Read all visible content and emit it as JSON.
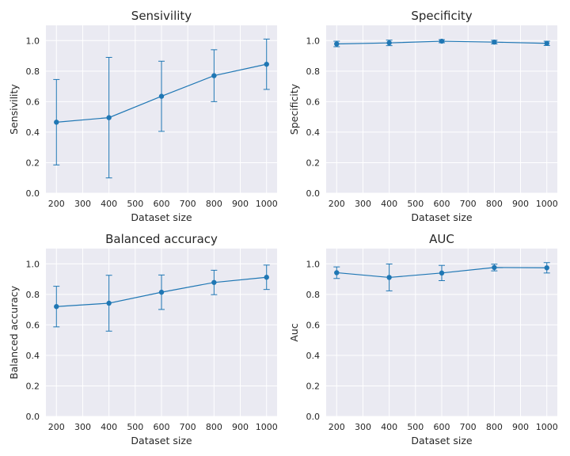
{
  "chart_data": [
    {
      "type": "line",
      "title": "Sensivility",
      "xlabel": "Dataset size",
      "ylabel": "Sensivility",
      "x": [
        200,
        400,
        600,
        800,
        1000
      ],
      "values": [
        0.465,
        0.495,
        0.635,
        0.77,
        0.845
      ],
      "errors": [
        0.28,
        0.395,
        0.23,
        0.17,
        0.165
      ],
      "xticks": [
        200,
        300,
        400,
        500,
        600,
        700,
        800,
        900,
        1000
      ],
      "yticks": [
        0.0,
        0.2,
        0.4,
        0.6,
        0.8,
        1.0
      ],
      "ylim": [
        0,
        1.1
      ],
      "color": "#1f77b4"
    },
    {
      "type": "line",
      "title": "Specificity",
      "xlabel": "Dataset size",
      "ylabel": "Specificity",
      "x": [
        200,
        400,
        600,
        800,
        1000
      ],
      "values": [
        0.978,
        0.985,
        0.996,
        0.99,
        0.982
      ],
      "errors": [
        0.018,
        0.018,
        0.01,
        0.012,
        0.014
      ],
      "xticks": [
        200,
        300,
        400,
        500,
        600,
        700,
        800,
        900,
        1000
      ],
      "yticks": [
        0.0,
        0.2,
        0.4,
        0.6,
        0.8,
        1.0
      ],
      "ylim": [
        0,
        1.1
      ],
      "color": "#1f77b4"
    },
    {
      "type": "line",
      "title": "Balanced accuracy",
      "xlabel": "Dataset size",
      "ylabel": "Balanced accuracy",
      "x": [
        200,
        400,
        600,
        800,
        1000
      ],
      "values": [
        0.72,
        0.742,
        0.814,
        0.878,
        0.912
      ],
      "errors": [
        0.133,
        0.183,
        0.113,
        0.08,
        0.08
      ],
      "xticks": [
        200,
        300,
        400,
        500,
        600,
        700,
        800,
        900,
        1000
      ],
      "yticks": [
        0.0,
        0.2,
        0.4,
        0.6,
        0.8,
        1.0
      ],
      "ylim": [
        0,
        1.1
      ],
      "color": "#1f77b4"
    },
    {
      "type": "line",
      "title": "AUC",
      "xlabel": "Dataset size",
      "ylabel": "Auc",
      "x": [
        200,
        400,
        600,
        800,
        1000
      ],
      "values": [
        0.942,
        0.911,
        0.94,
        0.976,
        0.974
      ],
      "errors": [
        0.038,
        0.088,
        0.05,
        0.022,
        0.034
      ],
      "xticks": [
        200,
        300,
        400,
        500,
        600,
        700,
        800,
        900,
        1000
      ],
      "yticks": [
        0.0,
        0.2,
        0.4,
        0.6,
        0.8,
        1.0
      ],
      "ylim": [
        0,
        1.1
      ],
      "color": "#1f77b4"
    }
  ]
}
